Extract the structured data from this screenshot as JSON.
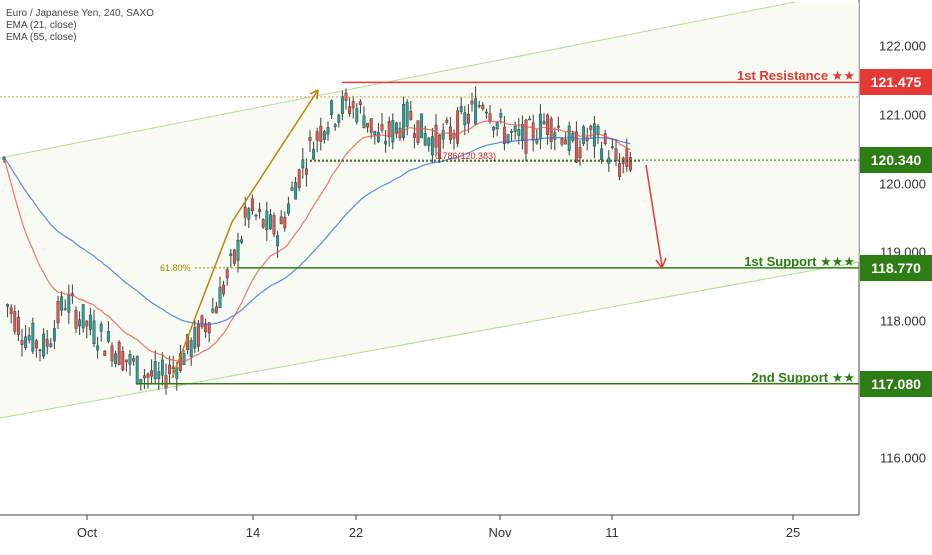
{
  "legend": {
    "symbol": "Euro / Japanese Yen, 240, SAXO",
    "ema21": "EMA (21, close)",
    "ema55": "EMA (55, close)"
  },
  "colors": {
    "candle_up": "#26a69a",
    "candle_down": "#ef5350",
    "candle_body": "#3d3d3d",
    "ema21": "#ef5350",
    "ema55": "#3f6bd4",
    "resistance": "#e53935",
    "support": "#2e7d14",
    "fib": "#a08a00",
    "arrow_up": "#b8860b",
    "arrow_down": "#e53935",
    "channel": "#b8d8a0"
  },
  "chart_data": {
    "type": "candlestick",
    "title": "Euro / Japanese Yen, 240, SAXO",
    "indicators": [
      "EMA (21, close)",
      "EMA (55, close)"
    ],
    "y_ticks": [
      "122.000",
      "121.000",
      "120.000",
      "119.000",
      "118.000",
      "116.000"
    ],
    "y_tick_values": [
      122.0,
      121.0,
      120.0,
      119.0,
      118.0,
      116.0
    ],
    "ylim": [
      115.0,
      123.0
    ],
    "x_ticks": [
      "Oct",
      "14",
      "22",
      "Nov",
      "11",
      "25"
    ],
    "levels": [
      {
        "name": "1st Resistance ★★",
        "value": 121.475,
        "badge": "121.475",
        "kind": "resistance"
      },
      {
        "name": "",
        "value": 120.34,
        "badge": "120.340",
        "kind": "current"
      },
      {
        "name": "1st Support ★★★",
        "value": 118.77,
        "badge": "118.770",
        "kind": "support"
      },
      {
        "name": "2nd Support ★★",
        "value": 117.08,
        "badge": "117.080",
        "kind": "support"
      }
    ],
    "annotations": {
      "fib_786": "0.786(120.383)",
      "fib_618": "61.80%"
    },
    "grid": false
  }
}
